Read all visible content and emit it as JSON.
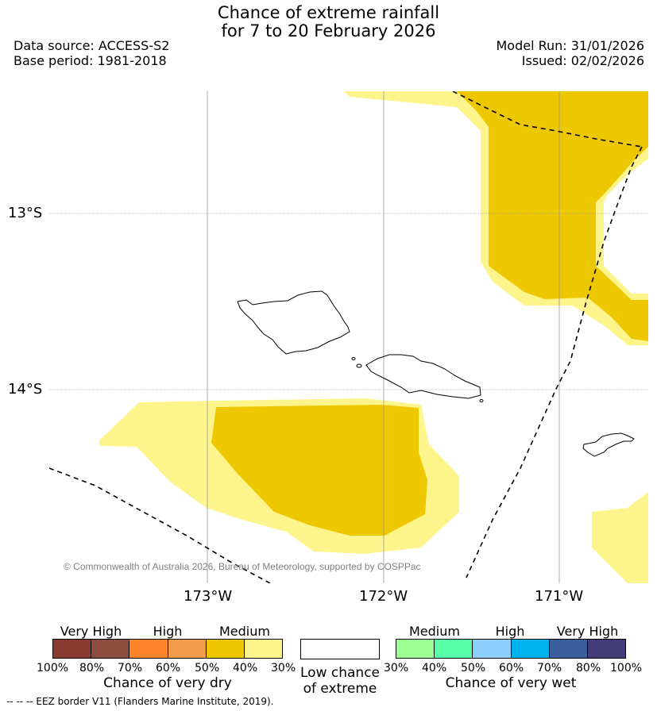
{
  "title": {
    "line1": "Chance of extreme rainfall",
    "line2": "for 7 to 20 February 2026"
  },
  "meta": {
    "data_source": "Data source: ACCESS-S2",
    "base_period": "Base period: 1981-2018",
    "model_run": "Model Run: 31/01/2026",
    "issued": "Issued: 02/02/2026"
  },
  "map": {
    "lat_labels": [
      "13°S",
      "14°S"
    ],
    "lon_labels": [
      "173°W",
      "172°W",
      "171°W"
    ],
    "credit": "© Commonwealth of Australia 2026, Bureau of Meteorology, supported by COSPPac",
    "colors": {
      "medium_dry_40_50": "#edc800",
      "medium_dry_30_40": "#fdf58c",
      "coastline": "#000000",
      "grid": "#999999"
    }
  },
  "legend": {
    "dry": {
      "headers": [
        "Very High",
        "High",
        "Medium"
      ],
      "ticks": [
        "100%",
        "80%",
        "70%",
        "60%",
        "50%",
        "40%",
        "30%"
      ],
      "colors": [
        "#8b3a32",
        "#8b4d3e",
        "#fe8329",
        "#f09c4a",
        "#edc800",
        "#fdf58c"
      ],
      "title": "Chance of very dry"
    },
    "low": {
      "line1": "Low chance",
      "line2": "of extreme"
    },
    "wet": {
      "headers": [
        "Medium",
        "High",
        "Very High"
      ],
      "ticks": [
        "30%",
        "40%",
        "50%",
        "60%",
        "70%",
        "80%",
        "100%"
      ],
      "colors": [
        "#9dfe91",
        "#58fea7",
        "#8bcefa",
        "#00b3ef",
        "#3b5f9c",
        "#423d78"
      ],
      "title": "Chance of very wet"
    }
  },
  "footnote": "--  --  -- EEZ border V11 (Flanders Marine Institute, 2019)."
}
